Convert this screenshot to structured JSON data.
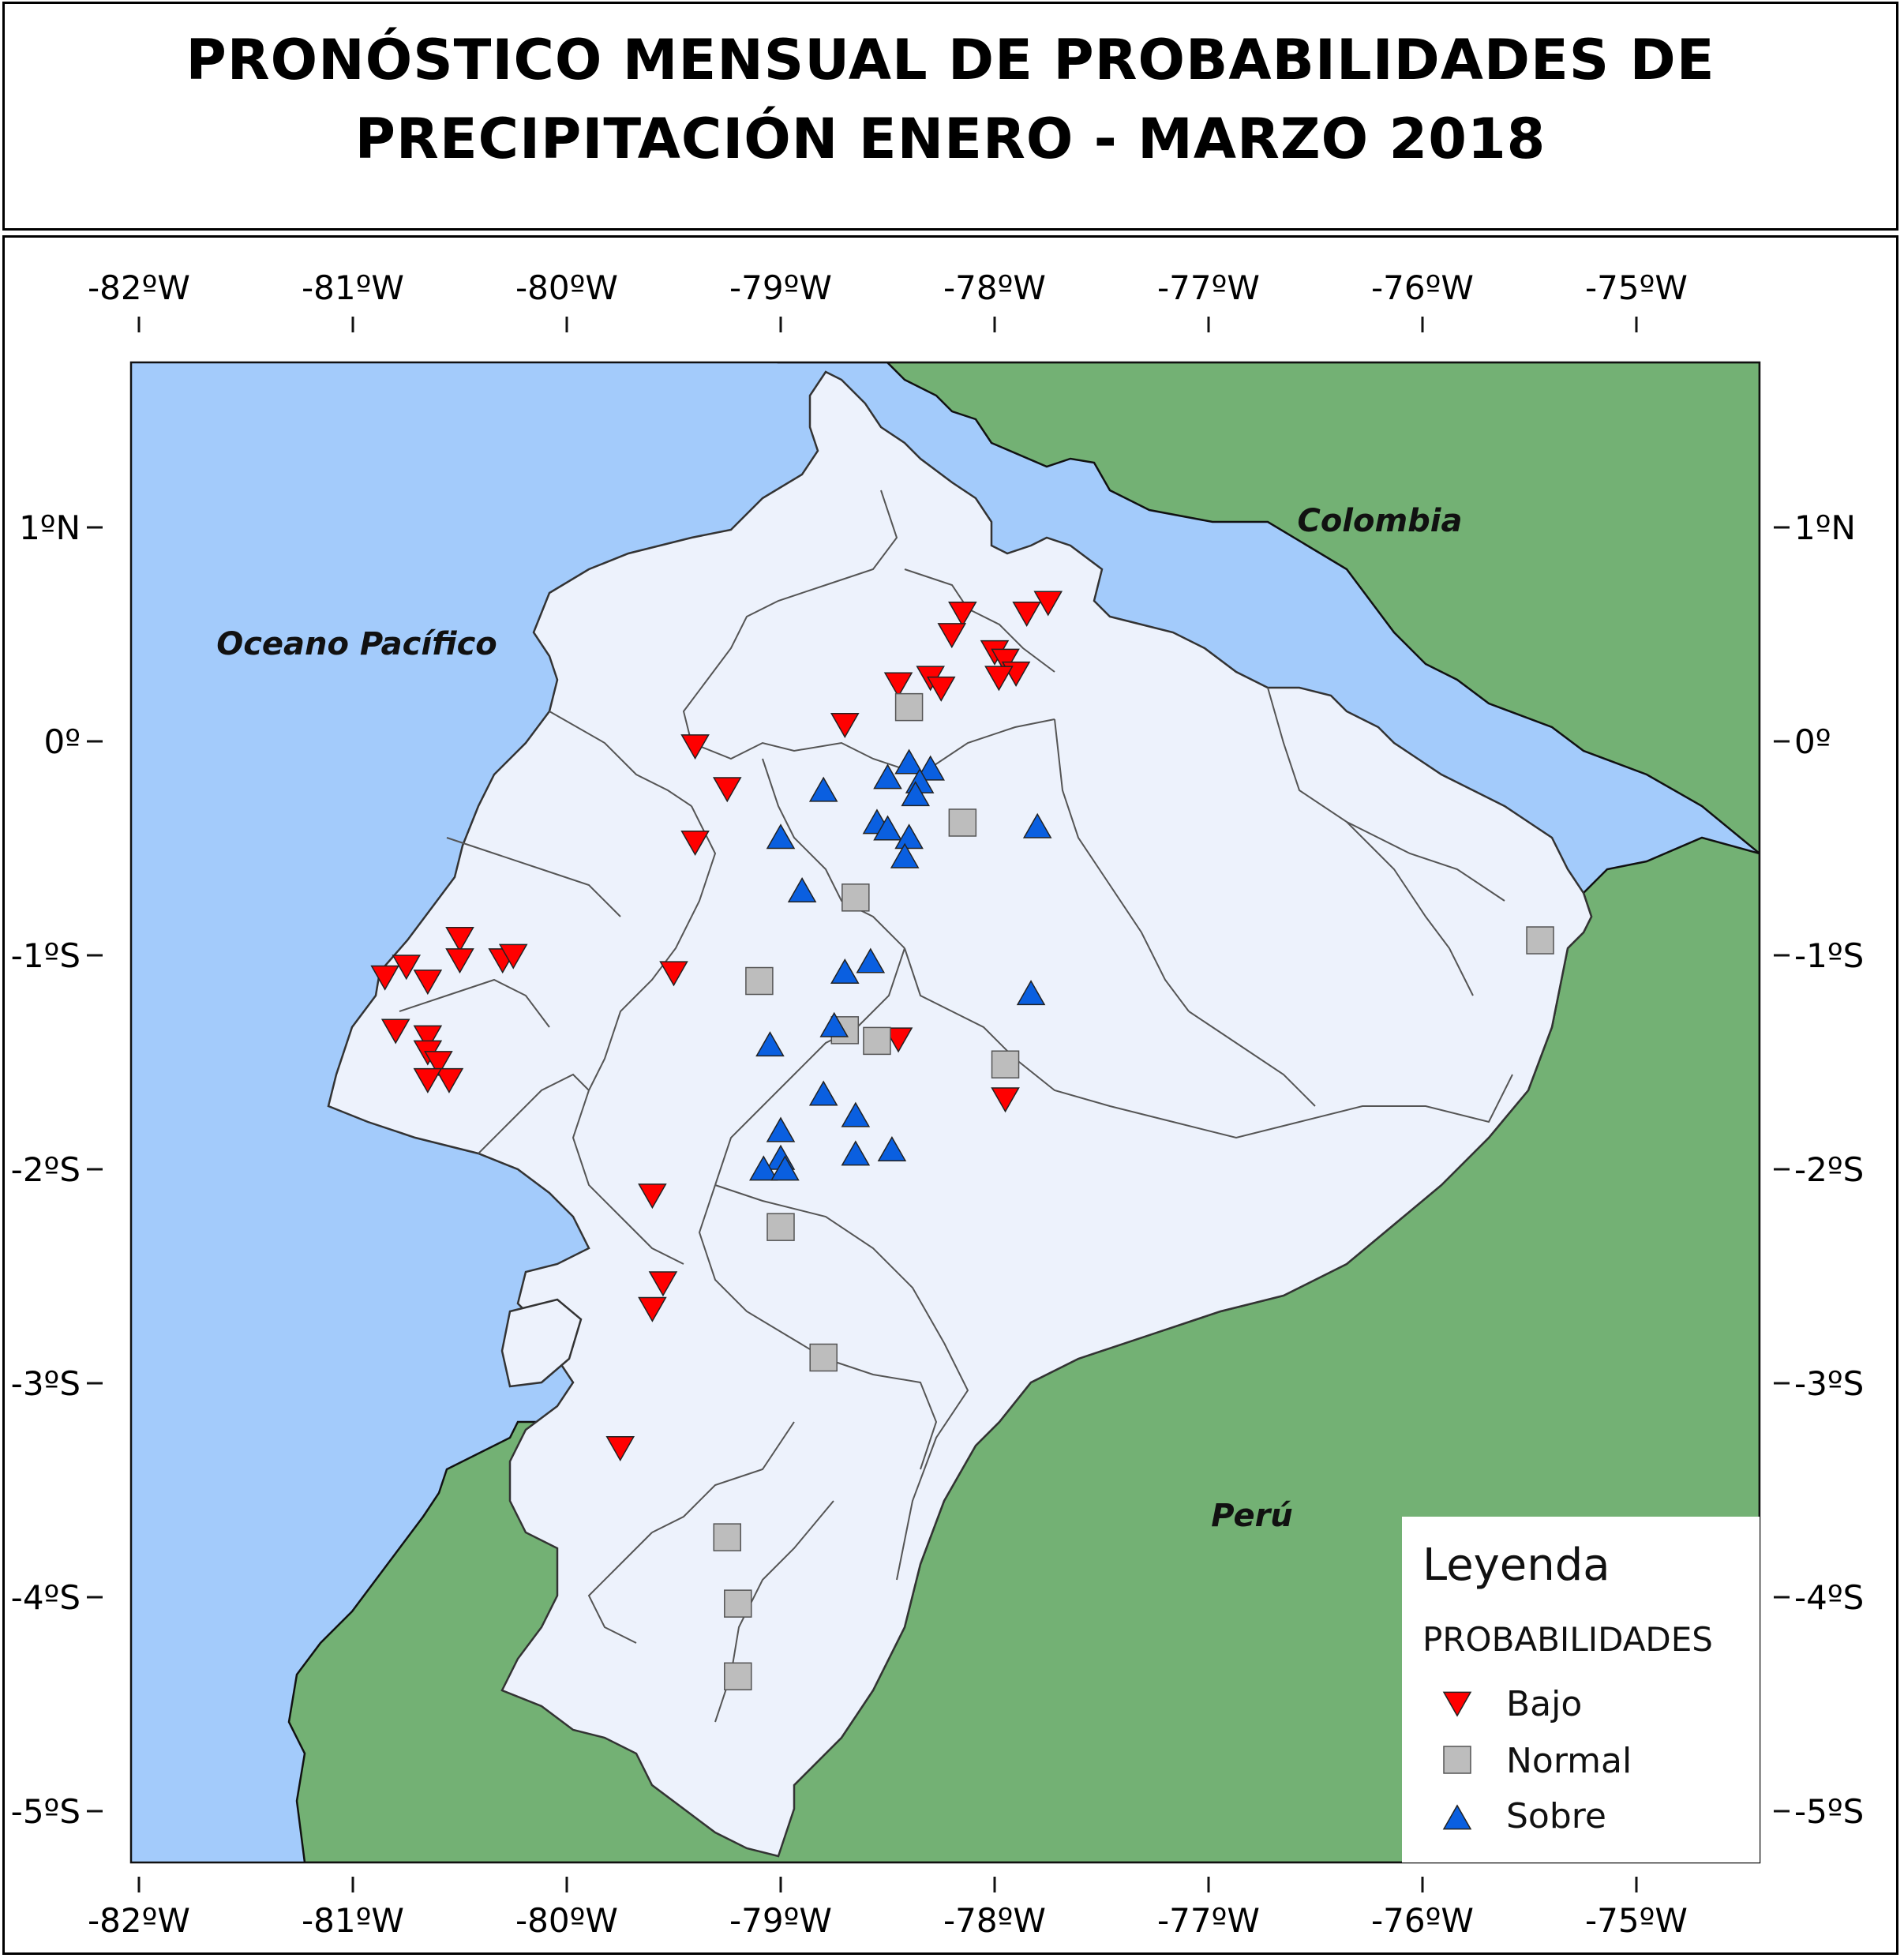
{
  "title": {
    "line1": "PRONÓSTICO MENSUAL DE PROBABILIDADES DE",
    "line2": "PRECIPITACIÓN  ENERO - MARZO 2018"
  },
  "map": {
    "lon_range": [
      -82,
      -74.4
    ],
    "lat_range": [
      -5.2,
      1.8
    ],
    "lon_ticks": [
      {
        "value": -82,
        "label": "-82ºW"
      },
      {
        "value": -81,
        "label": "-81ºW"
      },
      {
        "value": -80,
        "label": "-80ºW"
      },
      {
        "value": -79,
        "label": "-79ºW"
      },
      {
        "value": -78,
        "label": "-78ºW"
      },
      {
        "value": -77,
        "label": "-77ºW"
      },
      {
        "value": -76,
        "label": "-76ºW"
      },
      {
        "value": -75,
        "label": "-75ºW"
      }
    ],
    "lat_ticks": [
      {
        "value": 1,
        "label": "1ºN"
      },
      {
        "value": 0,
        "label": "0º"
      },
      {
        "value": -1,
        "label": "-1ºS"
      },
      {
        "value": -2,
        "label": "-2ºS"
      },
      {
        "value": -3,
        "label": "-3ºS"
      },
      {
        "value": -4,
        "label": "-4ºS"
      },
      {
        "value": -5,
        "label": "-5ºS"
      }
    ],
    "labels": {
      "colombia": "Colombia",
      "peru": "Perú",
      "ocean": "Oceano Pacífico"
    },
    "colors": {
      "ocean": "#a3cbfb",
      "neighbor": "#73b174",
      "ecuador": "#edf2fc",
      "bajo": "#ff0000",
      "normal": "#bdbdbd",
      "sobre": "#0a5fe0"
    }
  },
  "legend": {
    "title": "Leyenda",
    "subtitle": "PROBABILIDADES",
    "items": [
      {
        "key": "bajo",
        "label": "Bajo"
      },
      {
        "key": "normal",
        "label": "Normal"
      },
      {
        "key": "sobre",
        "label": "Sobre"
      }
    ]
  },
  "stations": {
    "bajo": [
      [
        -77.75,
        0.65
      ],
      [
        -77.85,
        0.6
      ],
      [
        -78.15,
        0.6
      ],
      [
        -78.2,
        0.5
      ],
      [
        -78.0,
        0.42
      ],
      [
        -77.95,
        0.38
      ],
      [
        -78.3,
        0.3
      ],
      [
        -78.25,
        0.25
      ],
      [
        -77.9,
        0.32
      ],
      [
        -77.98,
        0.3
      ],
      [
        -78.45,
        0.27
      ],
      [
        -78.7,
        0.08
      ],
      [
        -79.4,
        -0.02
      ],
      [
        -79.25,
        -0.22
      ],
      [
        -79.4,
        -0.47
      ],
      [
        -80.5,
        -0.92
      ],
      [
        -80.3,
        -1.02
      ],
      [
        -80.25,
        -1.0
      ],
      [
        -80.5,
        -1.02
      ],
      [
        -80.75,
        -1.05
      ],
      [
        -80.85,
        -1.1
      ],
      [
        -80.65,
        -1.12
      ],
      [
        -79.5,
        -1.08
      ],
      [
        -80.8,
        -1.35
      ],
      [
        -80.65,
        -1.38
      ],
      [
        -80.65,
        -1.45
      ],
      [
        -80.6,
        -1.5
      ],
      [
        -80.55,
        -1.58
      ],
      [
        -80.65,
        -1.58
      ],
      [
        -78.45,
        -1.39
      ],
      [
        -77.95,
        -1.67
      ],
      [
        -79.6,
        -2.12
      ],
      [
        -79.55,
        -2.53
      ],
      [
        -79.6,
        -2.65
      ],
      [
        -79.75,
        -3.3
      ]
    ],
    "normal": [
      [
        -78.4,
        0.16
      ],
      [
        -78.15,
        -0.38
      ],
      [
        -78.65,
        -0.73
      ],
      [
        -79.1,
        -1.12
      ],
      [
        -78.7,
        -1.35
      ],
      [
        -78.55,
        -1.4
      ],
      [
        -77.95,
        -1.51
      ],
      [
        -79.0,
        -2.27
      ],
      [
        -78.8,
        -2.88
      ],
      [
        -79.25,
        -3.72
      ],
      [
        -79.2,
        -4.03
      ],
      [
        -79.2,
        -4.37
      ],
      [
        -75.45,
        -0.93
      ]
    ],
    "sobre": [
      [
        -78.4,
        -0.1
      ],
      [
        -78.3,
        -0.13
      ],
      [
        -78.5,
        -0.17
      ],
      [
        -78.35,
        -0.19
      ],
      [
        -78.8,
        -0.23
      ],
      [
        -78.37,
        -0.25
      ],
      [
        -79.0,
        -0.45
      ],
      [
        -78.55,
        -0.38
      ],
      [
        -78.5,
        -0.41
      ],
      [
        -78.4,
        -0.45
      ],
      [
        -78.42,
        -0.54
      ],
      [
        -77.8,
        -0.4
      ],
      [
        -78.9,
        -0.7
      ],
      [
        -78.7,
        -1.08
      ],
      [
        -78.58,
        -1.03
      ],
      [
        -77.83,
        -1.18
      ],
      [
        -78.75,
        -1.33
      ],
      [
        -79.05,
        -1.42
      ],
      [
        -78.8,
        -1.65
      ],
      [
        -78.65,
        -1.75
      ],
      [
        -79.0,
        -1.82
      ],
      [
        -78.48,
        -1.91
      ],
      [
        -78.65,
        -1.93
      ],
      [
        -79.0,
        -1.95
      ],
      [
        -79.08,
        -2.0
      ],
      [
        -78.98,
        -2.0
      ]
    ]
  }
}
